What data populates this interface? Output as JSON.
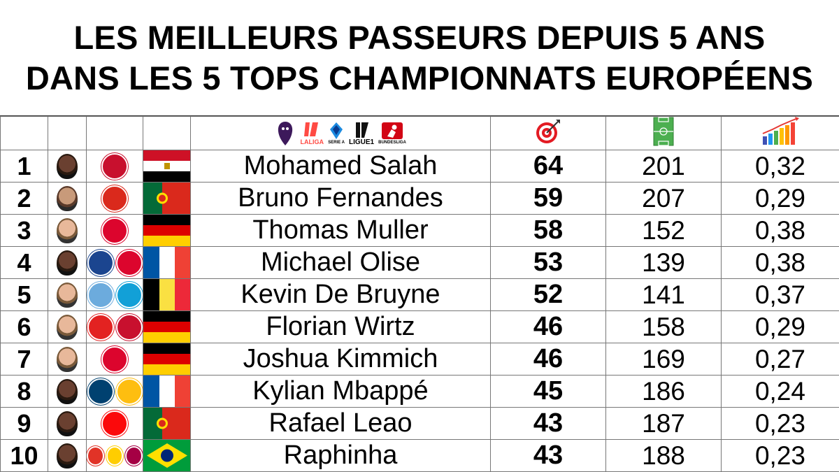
{
  "title": {
    "line1": "LES MEILLEURS PASSEURS DEPUIS 5 ANS",
    "line2": "DANS LES 5 TOPS CHAMPIONNATS EUROPÉENS"
  },
  "header": {
    "league_icons": [
      "premier-league-icon",
      "laliga-icon",
      "serie-a-icon",
      "ligue1-icon",
      "bundesliga-icon"
    ],
    "league_labels": [
      "LALIGA",
      "SERIE A",
      "LIGUE1",
      "BUNDESLIGA"
    ],
    "assists_icon": "target-icon",
    "matches_icon": "pitch-icon",
    "ratio_icon": "bar-chart-icon"
  },
  "rows": [
    {
      "rank": "1",
      "name": "Mohamed Salah",
      "assists": "64",
      "matches": "201",
      "ratio": "0,32",
      "clubs": [
        {
          "name": "liverpool",
          "color": "#c8102e"
        }
      ],
      "flag": "egypt"
    },
    {
      "rank": "2",
      "name": "Bruno Fernandes",
      "assists": "59",
      "matches": "207",
      "ratio": "0,29",
      "clubs": [
        {
          "name": "manchester-united",
          "color": "#da291c"
        }
      ],
      "flag": "portugal"
    },
    {
      "rank": "3",
      "name": "Thomas Muller",
      "assists": "58",
      "matches": "152",
      "ratio": "0,38",
      "clubs": [
        {
          "name": "bayern",
          "color": "#dc052d"
        }
      ],
      "flag": "germany"
    },
    {
      "rank": "4",
      "name": "Michael Olise",
      "assists": "53",
      "matches": "139",
      "ratio": "0,38",
      "clubs": [
        {
          "name": "crystal-palace",
          "color": "#1b458f"
        },
        {
          "name": "bayern",
          "color": "#dc052d"
        }
      ],
      "flag": "france"
    },
    {
      "rank": "5",
      "name": "Kevin De Bruyne",
      "assists": "52",
      "matches": "141",
      "ratio": "0,37",
      "clubs": [
        {
          "name": "manchester-city",
          "color": "#6cabdd"
        },
        {
          "name": "napoli",
          "color": "#12a0d7"
        }
      ],
      "flag": "belgium"
    },
    {
      "rank": "6",
      "name": "Florian Wirtz",
      "assists": "46",
      "matches": "158",
      "ratio": "0,29",
      "clubs": [
        {
          "name": "leverkusen",
          "color": "#e32221"
        },
        {
          "name": "liverpool",
          "color": "#c8102e"
        }
      ],
      "flag": "germany"
    },
    {
      "rank": "7",
      "name": "Joshua Kimmich",
      "assists": "46",
      "matches": "169",
      "ratio": "0,27",
      "clubs": [
        {
          "name": "bayern",
          "color": "#dc052d"
        }
      ],
      "flag": "germany"
    },
    {
      "rank": "8",
      "name": "Kylian Mbappé",
      "assists": "45",
      "matches": "186",
      "ratio": "0,24",
      "clubs": [
        {
          "name": "psg",
          "color": "#004170"
        },
        {
          "name": "real-madrid",
          "color": "#febe10"
        }
      ],
      "flag": "france"
    },
    {
      "rank": "9",
      "name": "Rafael Leao",
      "assists": "43",
      "matches": "187",
      "ratio": "0,23",
      "clubs": [
        {
          "name": "ac-milan",
          "color": "#fb090b"
        }
      ],
      "flag": "portugal"
    },
    {
      "rank": "10",
      "name": "Raphinha",
      "assists": "43",
      "matches": "188",
      "ratio": "0,23",
      "clubs": [
        {
          "name": "rennes",
          "color": "#e13327"
        },
        {
          "name": "leeds",
          "color": "#ffcd00"
        },
        {
          "name": "barcelona",
          "color": "#a50044"
        }
      ],
      "flag": "brazil"
    }
  ]
}
